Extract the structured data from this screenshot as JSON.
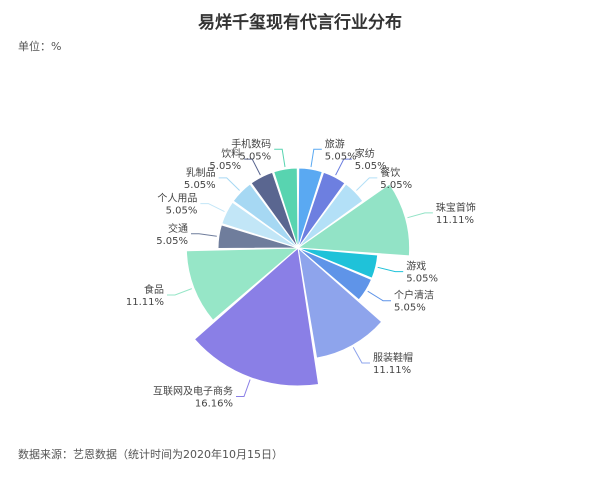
{
  "title": "易烊千玺现有代言行业分布",
  "unit": "单位：%",
  "source": "数据来源：艺恩数据（统计时间为2020年10月15日）",
  "chart_data": {
    "type": "pie",
    "subtype": "rose",
    "title": "易烊千玺现有代言行业分布",
    "unit": "%",
    "slices": [
      {
        "label": "旅游",
        "value": 5.05,
        "value_text": "5.05%",
        "color": "#5aa9f2"
      },
      {
        "label": "家纺",
        "value": 5.05,
        "value_text": "5.05%",
        "color": "#6d7fe0"
      },
      {
        "label": "餐饮",
        "value": 5.05,
        "value_text": "5.05%",
        "color": "#b3e0f7"
      },
      {
        "label": "珠宝首饰",
        "value": 11.11,
        "value_text": "11.11%",
        "color": "#92e3c6"
      },
      {
        "label": "游戏",
        "value": 5.05,
        "value_text": "5.05%",
        "color": "#1fc2d9"
      },
      {
        "label": "个户清洁",
        "value": 5.05,
        "value_text": "5.05%",
        "color": "#5f94e8"
      },
      {
        "label": "服装鞋帽",
        "value": 11.11,
        "value_text": "11.11%",
        "color": "#8ea4ec"
      },
      {
        "label": "互联网及电子商务",
        "value": 16.16,
        "value_text": "16.16%",
        "color": "#8a7fe6"
      },
      {
        "label": "食品",
        "value": 11.11,
        "value_text": "11.11%",
        "color": "#96e6c7"
      },
      {
        "label": "交通",
        "value": 5.05,
        "value_text": "5.05%",
        "color": "#6f7d9c"
      },
      {
        "label": "个人用品",
        "value": 5.05,
        "value_text": "5.05%",
        "color": "#c2e6f7"
      },
      {
        "label": "乳制品",
        "value": 5.05,
        "value_text": "5.05%",
        "color": "#a6d8f3"
      },
      {
        "label": "饮料",
        "value": 5.05,
        "value_text": "5.05%",
        "color": "#5a6690"
      },
      {
        "label": "手机数码",
        "value": 5.05,
        "value_text": "5.05%",
        "color": "#58d4b0"
      }
    ]
  }
}
